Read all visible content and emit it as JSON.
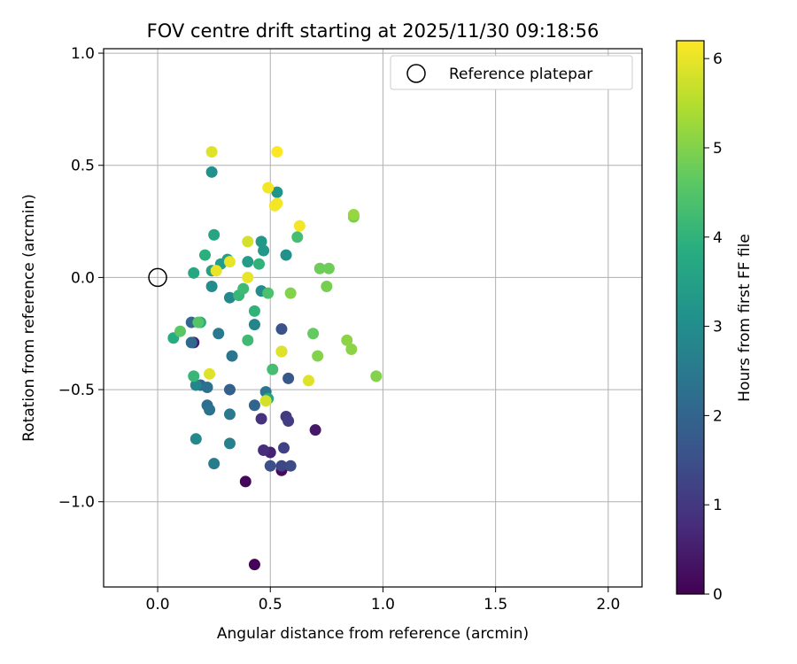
{
  "chart_data": {
    "type": "scatter",
    "title": "FOV centre drift starting at 2025/11/30 09:18:56",
    "xlabel": "Angular distance from reference (arcmin)",
    "ylabel": "Rotation from reference (arcmin)",
    "xlim": [
      -0.24,
      2.15
    ],
    "ylim": [
      -1.38,
      1.02
    ],
    "xticks": [
      0.0,
      0.5,
      1.0,
      1.5,
      2.0
    ],
    "xtick_labels": [
      "0.0",
      "0.5",
      "1.0",
      "1.5",
      "2.0"
    ],
    "yticks": [
      -1.0,
      -0.5,
      0.0,
      0.5,
      1.0
    ],
    "ytick_labels": [
      "−1.0",
      "−0.5",
      "0.0",
      "0.5",
      "1.0"
    ],
    "grid": true,
    "legend": {
      "position": "top-right",
      "entries": [
        "Reference platepar"
      ]
    },
    "reference_point": {
      "x": 0.0,
      "y": 0.0
    },
    "colorbar": {
      "label": "Hours from first FF file",
      "colormap": "viridis",
      "range": [
        0,
        6.2
      ],
      "ticks": [
        0,
        1,
        2,
        3,
        4,
        5,
        6
      ],
      "tick_labels": [
        "0",
        "1",
        "2",
        "3",
        "4",
        "5",
        "6"
      ]
    },
    "points": [
      {
        "x": 0.43,
        "y": -1.28,
        "h": 0.05
      },
      {
        "x": 0.39,
        "y": -0.91,
        "h": 0.1
      },
      {
        "x": 0.55,
        "y": -0.86,
        "h": 0.2
      },
      {
        "x": 0.7,
        "y": -0.68,
        "h": 0.4
      },
      {
        "x": 0.16,
        "y": -0.29,
        "h": 0.5
      },
      {
        "x": 0.5,
        "y": -0.78,
        "h": 0.6
      },
      {
        "x": 0.47,
        "y": -0.77,
        "h": 0.8
      },
      {
        "x": 0.46,
        "y": -0.63,
        "h": 0.9
      },
      {
        "x": 0.57,
        "y": -0.62,
        "h": 1.0
      },
      {
        "x": 0.58,
        "y": -0.64,
        "h": 1.1
      },
      {
        "x": 0.56,
        "y": -0.76,
        "h": 1.2
      },
      {
        "x": 0.55,
        "y": -0.84,
        "h": 1.3
      },
      {
        "x": 0.59,
        "y": -0.84,
        "h": 1.4
      },
      {
        "x": 0.5,
        "y": -0.84,
        "h": 1.5
      },
      {
        "x": 0.55,
        "y": -0.23,
        "h": 1.6
      },
      {
        "x": 0.58,
        "y": -0.45,
        "h": 1.7
      },
      {
        "x": 0.32,
        "y": -0.5,
        "h": 1.9
      },
      {
        "x": 0.43,
        "y": -0.57,
        "h": 2.0
      },
      {
        "x": 0.19,
        "y": -0.48,
        "h": 2.0
      },
      {
        "x": 0.15,
        "y": -0.29,
        "h": 2.1
      },
      {
        "x": 0.15,
        "y": -0.2,
        "h": 2.1
      },
      {
        "x": 0.22,
        "y": -0.57,
        "h": 2.2
      },
      {
        "x": 0.23,
        "y": -0.59,
        "h": 2.3
      },
      {
        "x": 0.22,
        "y": -0.49,
        "h": 2.3
      },
      {
        "x": 0.48,
        "y": -0.51,
        "h": 2.4
      },
      {
        "x": 0.33,
        "y": -0.35,
        "h": 2.4
      },
      {
        "x": 0.27,
        "y": -0.25,
        "h": 2.5
      },
      {
        "x": 0.32,
        "y": -0.61,
        "h": 2.5
      },
      {
        "x": 0.25,
        "y": -0.83,
        "h": 2.6
      },
      {
        "x": 0.32,
        "y": -0.74,
        "h": 2.7
      },
      {
        "x": 0.17,
        "y": -0.48,
        "h": 2.8
      },
      {
        "x": 0.43,
        "y": -0.21,
        "h": 2.8
      },
      {
        "x": 0.17,
        "y": -0.72,
        "h": 2.9
      },
      {
        "x": 0.32,
        "y": -0.09,
        "h": 2.9
      },
      {
        "x": 0.24,
        "y": -0.04,
        "h": 3.0
      },
      {
        "x": 0.46,
        "y": -0.06,
        "h": 3.0
      },
      {
        "x": 0.24,
        "y": 0.47,
        "h": 3.1
      },
      {
        "x": 0.57,
        "y": 0.1,
        "h": 3.1
      },
      {
        "x": 0.53,
        "y": 0.38,
        "h": 3.2
      },
      {
        "x": 0.47,
        "y": 0.12,
        "h": 3.3
      },
      {
        "x": 0.46,
        "y": 0.16,
        "h": 3.3
      },
      {
        "x": 0.4,
        "y": 0.07,
        "h": 3.4
      },
      {
        "x": 0.28,
        "y": 0.06,
        "h": 3.4
      },
      {
        "x": 0.24,
        "y": 0.03,
        "h": 3.5
      },
      {
        "x": 0.31,
        "y": 0.08,
        "h": 3.5
      },
      {
        "x": 0.25,
        "y": 0.19,
        "h": 3.6
      },
      {
        "x": 0.16,
        "y": 0.02,
        "h": 3.7
      },
      {
        "x": 0.49,
        "y": -0.54,
        "h": 3.7
      },
      {
        "x": 0.19,
        "y": -0.2,
        "h": 3.8
      },
      {
        "x": 0.07,
        "y": -0.27,
        "h": 3.8
      },
      {
        "x": 0.21,
        "y": 0.1,
        "h": 3.9
      },
      {
        "x": 0.43,
        "y": -0.15,
        "h": 4.0
      },
      {
        "x": 0.45,
        "y": 0.06,
        "h": 4.0
      },
      {
        "x": 0.16,
        "y": -0.44,
        "h": 4.1
      },
      {
        "x": 0.36,
        "y": -0.08,
        "h": 4.1
      },
      {
        "x": 0.4,
        "y": -0.28,
        "h": 4.2
      },
      {
        "x": 0.38,
        "y": -0.05,
        "h": 4.2
      },
      {
        "x": 0.51,
        "y": -0.41,
        "h": 4.3
      },
      {
        "x": 0.62,
        "y": 0.18,
        "h": 4.3
      },
      {
        "x": 0.49,
        "y": -0.07,
        "h": 4.4
      },
      {
        "x": 0.18,
        "y": -0.2,
        "h": 4.5
      },
      {
        "x": 0.1,
        "y": -0.24,
        "h": 4.6
      },
      {
        "x": 0.69,
        "y": -0.25,
        "h": 4.7
      },
      {
        "x": 0.55,
        "y": -0.33,
        "h": 4.7
      },
      {
        "x": 0.72,
        "y": 0.04,
        "h": 4.8
      },
      {
        "x": 0.76,
        "y": 0.04,
        "h": 4.8
      },
      {
        "x": 0.75,
        "y": -0.04,
        "h": 4.9
      },
      {
        "x": 0.87,
        "y": 0.27,
        "h": 4.9
      },
      {
        "x": 0.59,
        "y": -0.07,
        "h": 5.0
      },
      {
        "x": 0.71,
        "y": -0.35,
        "h": 5.0
      },
      {
        "x": 0.97,
        "y": -0.44,
        "h": 5.0
      },
      {
        "x": 0.84,
        "y": -0.28,
        "h": 5.1
      },
      {
        "x": 0.86,
        "y": -0.32,
        "h": 5.1
      },
      {
        "x": 0.87,
        "y": 0.28,
        "h": 5.2
      },
      {
        "x": 0.4,
        "y": 0.16,
        "h": 5.8
      },
      {
        "x": 0.48,
        "y": -0.55,
        "h": 5.8
      },
      {
        "x": 0.67,
        "y": -0.46,
        "h": 5.9
      },
      {
        "x": 0.55,
        "y": -0.33,
        "h": 5.9
      },
      {
        "x": 0.24,
        "y": 0.56,
        "h": 5.9
      },
      {
        "x": 0.23,
        "y": -0.43,
        "h": 5.9
      },
      {
        "x": 0.4,
        "y": 0.0,
        "h": 6.0
      },
      {
        "x": 0.26,
        "y": 0.03,
        "h": 6.0
      },
      {
        "x": 0.32,
        "y": 0.07,
        "h": 6.0
      },
      {
        "x": 0.49,
        "y": 0.4,
        "h": 6.1
      },
      {
        "x": 0.52,
        "y": 0.32,
        "h": 6.1
      },
      {
        "x": 0.53,
        "y": 0.33,
        "h": 6.1
      },
      {
        "x": 0.63,
        "y": 0.23,
        "h": 6.1
      },
      {
        "x": 0.53,
        "y": 0.56,
        "h": 6.2
      }
    ]
  }
}
